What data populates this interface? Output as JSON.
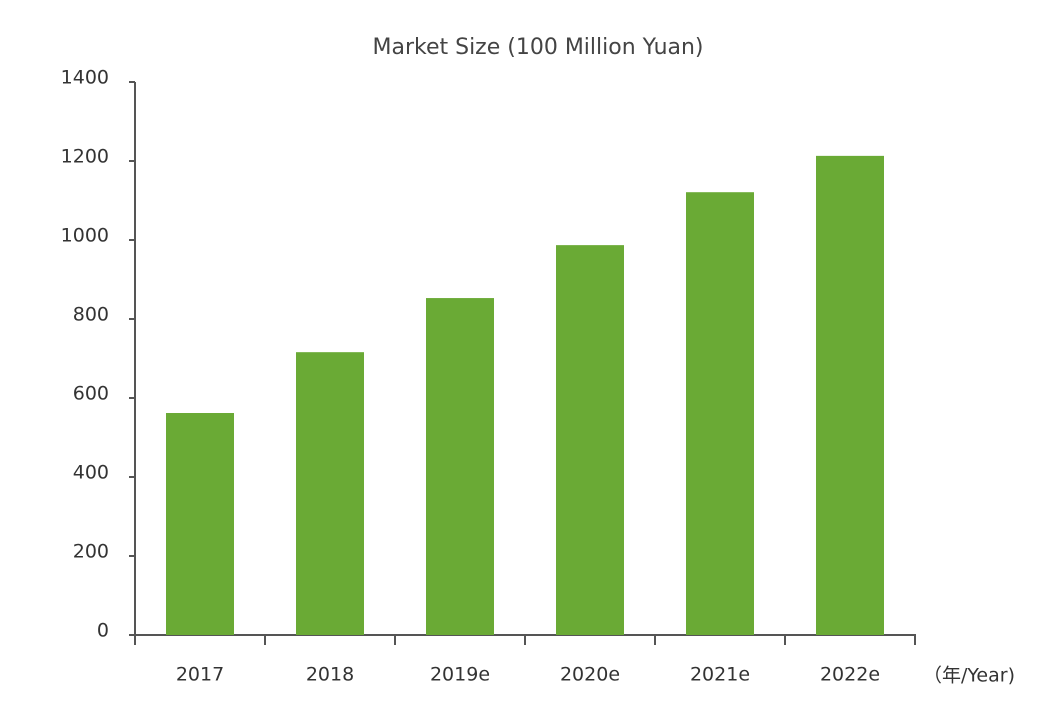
{
  "chart_data": {
    "type": "bar",
    "title": "Market Size (100 Million Yuan)",
    "x_label": "（年/Year)",
    "categories": [
      "2017",
      "2018",
      "2019e",
      "2020e",
      "2021e",
      "2022e"
    ],
    "values": [
      562,
      716,
      853,
      987,
      1121,
      1213
    ],
    "color": "#6aaa35",
    "ylim": [
      0,
      1400
    ],
    "yticks": [
      0,
      200,
      400,
      600,
      800,
      1000,
      1200,
      1400
    ],
    "grid": false
  }
}
